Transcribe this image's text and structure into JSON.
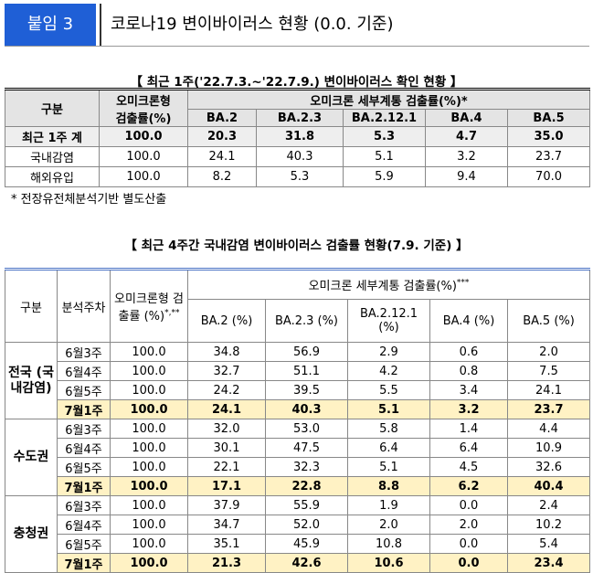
{
  "header": {
    "badge": "붙임 3",
    "title": "코로나19 변이바이러스 현황 (0.0. 기준)"
  },
  "table1": {
    "title": "【 최근 1주('22.7.3.~'22.7.9.) 변이바이러스 확인 현황 】",
    "header": {
      "group": "구분",
      "omicron": [
        "오미크론형",
        "검출률(%)"
      ],
      "sub": "오미크론 세부계통 검출률(%)*",
      "lineages": [
        "BA.2",
        "BA.2.3",
        "BA.2.12.1",
        "BA.4",
        "BA.5"
      ]
    },
    "rows": [
      [
        "최근 1주 계",
        "100.0",
        "20.3",
        "31.8",
        "5.3",
        "4.7",
        "35.0"
      ],
      [
        "국내감염",
        "100.0",
        "24.1",
        "40.3",
        "5.1",
        "3.2",
        "23.7"
      ],
      [
        "해외유입",
        "100.0",
        "8.2",
        "5.3",
        "5.9",
        "9.4",
        "70.0"
      ]
    ],
    "note": "* 전장유전체분석기반 별도산출"
  },
  "table2": {
    "title": "【 최근 4주간 국내감염 변이바이러스 검출률 현황(7.9. 기준) 】",
    "header": {
      "group": "구분",
      "week": "분석주차",
      "omicron": "오미크론형 검출률 (%)",
      "omicron_sup": "*,**",
      "sub": "오미크론 세부계통 검출률(%)",
      "sub_sup": "***",
      "lineages": [
        "BA.2 (%)",
        "BA.2.3 (%)",
        "BA.2.12.1 (%)",
        "BA.4 (%)",
        "BA.5 (%)"
      ]
    },
    "groups": [
      {
        "region": "전국 (국내감염)",
        "rows": [
          [
            "6월3주",
            "100.0",
            "34.8",
            "56.9",
            "2.9",
            "0.6",
            "2.0"
          ],
          [
            "6월4주",
            "100.0",
            "32.7",
            "51.1",
            "4.2",
            "0.8",
            "7.5"
          ],
          [
            "6월5주",
            "100.0",
            "24.2",
            "39.5",
            "5.5",
            "3.4",
            "24.1"
          ],
          [
            "7월1주",
            "100.0",
            "24.1",
            "40.3",
            "5.1",
            "3.2",
            "23.7"
          ]
        ]
      },
      {
        "region": "수도권",
        "rows": [
          [
            "6월3주",
            "100.0",
            "32.0",
            "53.0",
            "5.8",
            "1.4",
            "4.4"
          ],
          [
            "6월4주",
            "100.0",
            "30.1",
            "47.5",
            "6.4",
            "6.4",
            "10.9"
          ],
          [
            "6월5주",
            "100.0",
            "22.1",
            "32.3",
            "5.1",
            "4.5",
            "32.6"
          ],
          [
            "7월1주",
            "100.0",
            "17.1",
            "22.8",
            "8.8",
            "6.2",
            "40.4"
          ]
        ]
      },
      {
        "region": "충청권",
        "rows": [
          [
            "6월3주",
            "100.0",
            "37.9",
            "55.9",
            "1.9",
            "0.0",
            "2.4"
          ],
          [
            "6월4주",
            "100.0",
            "34.7",
            "52.0",
            "2.0",
            "2.0",
            "10.2"
          ],
          [
            "6월5주",
            "100.0",
            "35.1",
            "45.9",
            "10.8",
            "0.0",
            "5.4"
          ],
          [
            "7월1주",
            "100.0",
            "21.3",
            "42.6",
            "10.6",
            "0.0",
            "23.4"
          ]
        ]
      }
    ]
  }
}
